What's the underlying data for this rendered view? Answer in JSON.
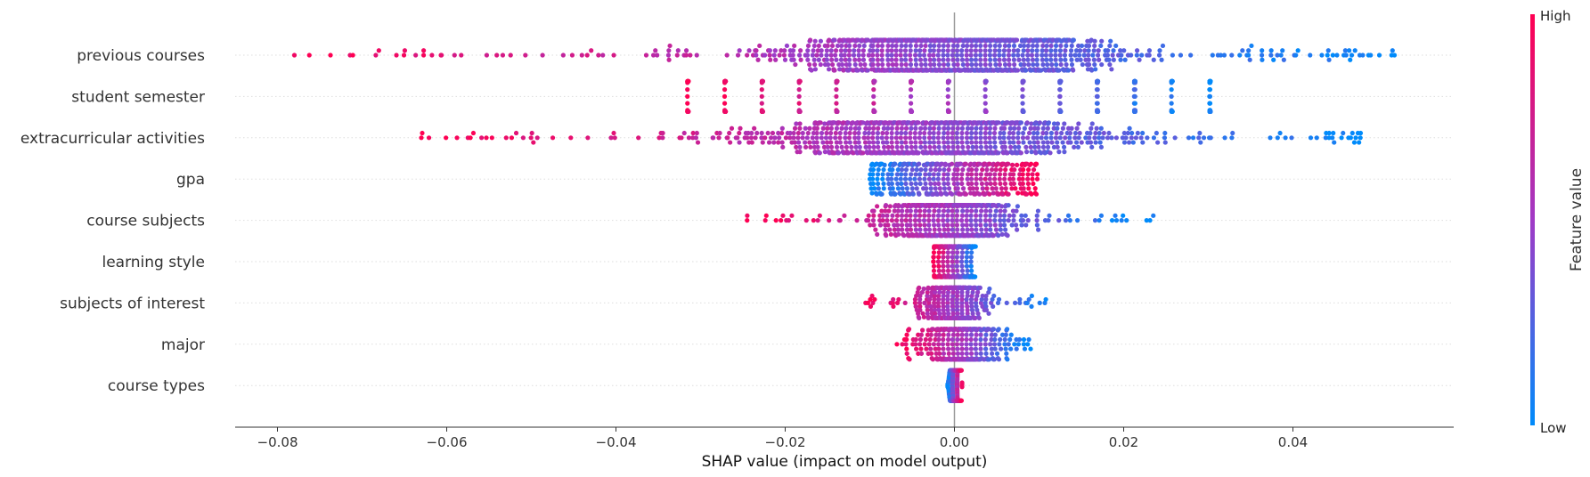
{
  "chart_data": {
    "type": "scatter",
    "subtype": "shap-beeswarm",
    "title": "",
    "xlabel": "SHAP value (impact on model output)",
    "ylabel": "",
    "xlim": [
      -0.085,
      0.059
    ],
    "xticks": [
      -0.08,
      -0.06,
      -0.04,
      -0.02,
      0.0,
      0.02,
      0.04
    ],
    "xtick_labels": [
      "−0.08",
      "−0.06",
      "−0.04",
      "−0.02",
      "0.00",
      "0.02",
      "0.04"
    ],
    "grid": "dotted horizontal row guides",
    "colorbar": {
      "label": "Feature value",
      "high_label": "High",
      "low_label": "Low",
      "high_color": "#ff0052",
      "low_color": "#008bfb"
    },
    "features": [
      {
        "name": "previous courses",
        "min": -0.078,
        "max": 0.052,
        "dense": [
          -0.03,
          0.03
        ],
        "spread": "continuous",
        "density": "broad",
        "direction": "neg"
      },
      {
        "name": "student semester",
        "min": -0.0315,
        "max": 0.0302,
        "levels": [
          -0.0315,
          -0.0271,
          -0.0227,
          -0.0183,
          -0.0139,
          -0.0095,
          -0.0051,
          -0.0007,
          0.0037,
          0.0081,
          0.0125,
          0.0169,
          0.0213,
          0.0257,
          0.0302
        ],
        "spread": "discrete",
        "direction": "neg"
      },
      {
        "name": "extracurricular activities",
        "min": -0.063,
        "max": 0.048,
        "dense": [
          -0.025,
          0.02
        ],
        "spread": "continuous",
        "density": "peaked",
        "direction": "neg"
      },
      {
        "name": "gpa",
        "min": -0.01,
        "max": 0.0098,
        "dense": [
          -0.01,
          0.0098
        ],
        "spread": "continuous",
        "density": "flat",
        "direction": "pos"
      },
      {
        "name": "course subjects",
        "min": -0.0245,
        "max": 0.0235,
        "dense": [
          -0.009,
          0.008
        ],
        "spread": "continuous",
        "density": "peaked",
        "direction": "neg"
      },
      {
        "name": "learning style",
        "min": -0.0025,
        "max": 0.0025,
        "dense": [
          -0.0025,
          0.0025
        ],
        "spread": "continuous",
        "density": "flat",
        "direction": "neg"
      },
      {
        "name": "subjects of interest",
        "min": -0.0105,
        "max": 0.0108,
        "dense": [
          -0.004,
          0.004
        ],
        "spread": "continuous",
        "density": "peaked",
        "direction": "neg"
      },
      {
        "name": "major",
        "min": -0.0068,
        "max": 0.009,
        "dense": [
          -0.004,
          0.006
        ],
        "spread": "continuous",
        "density": "peaked",
        "direction": "neg"
      },
      {
        "name": "course types",
        "min": -0.0008,
        "max": 0.0009,
        "dense": [
          -0.0008,
          0.0009
        ],
        "spread": "continuous",
        "density": "peaked",
        "direction": "pos"
      }
    ]
  }
}
